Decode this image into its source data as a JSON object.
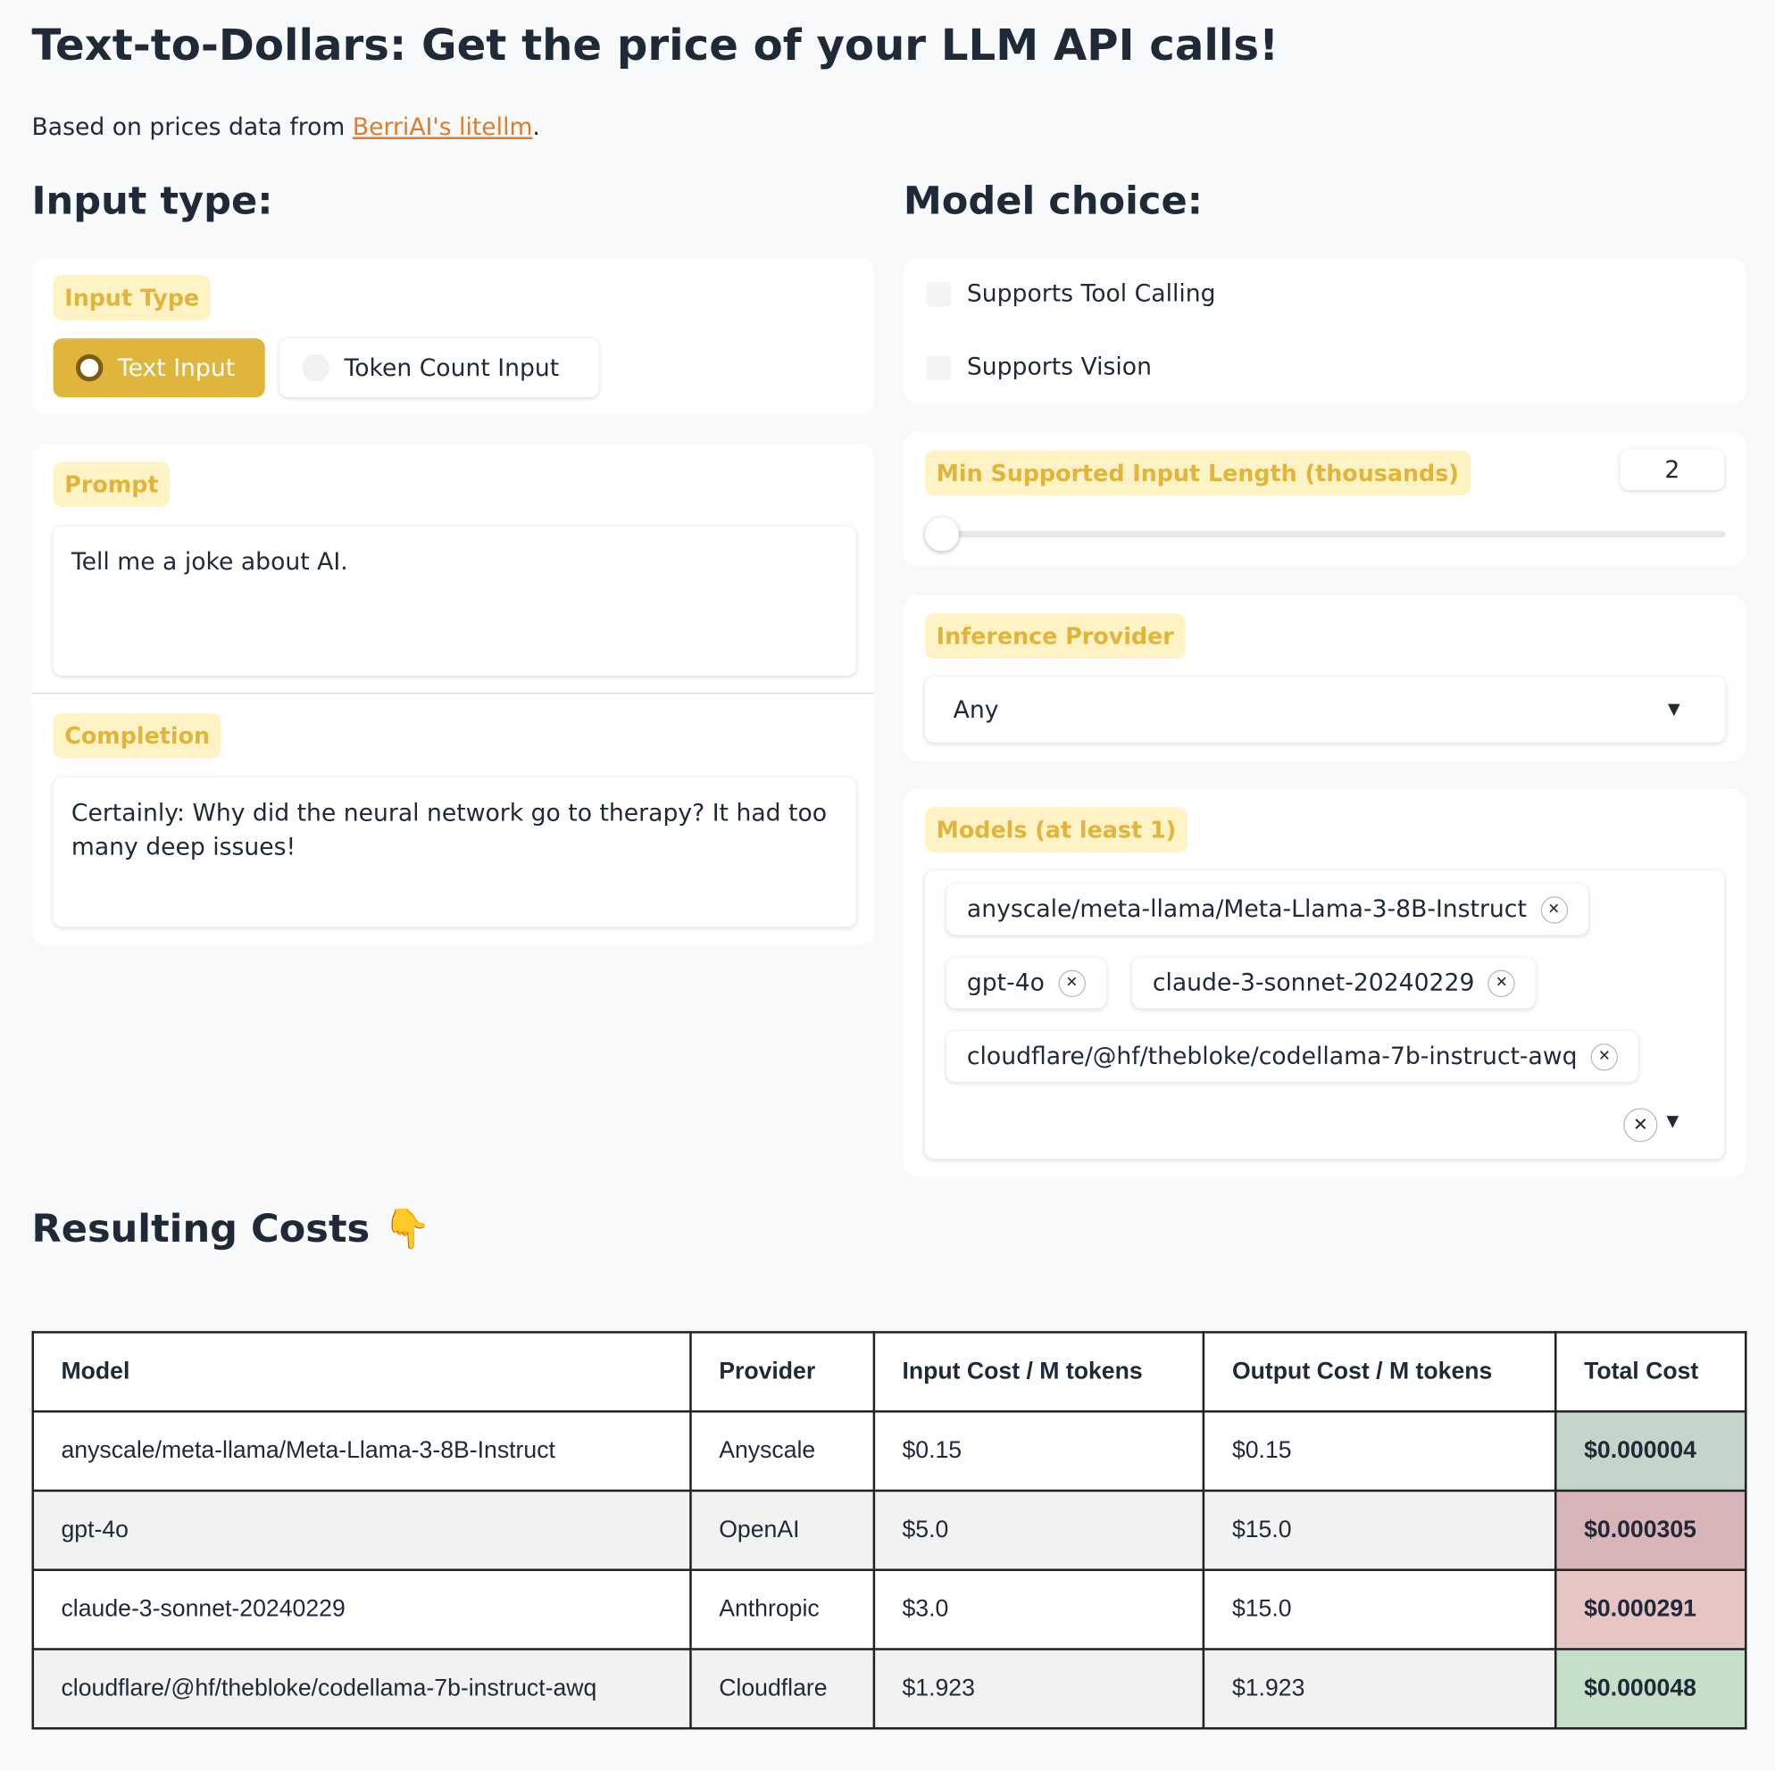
{
  "header": {
    "title": "Text-to-Dollars: Get the price of your LLM API calls!",
    "subtitle_prefix": "Based on prices data from ",
    "link": "BerriAI's litellm",
    "subtitle_suffix": "."
  },
  "input_section": {
    "heading": "Input type:",
    "input_type_label": "Input Type",
    "options": [
      "Text Input",
      "Token Count Input"
    ],
    "prompt_label": "Prompt",
    "prompt": "Tell me a joke about AI.",
    "completion_label": "Completion",
    "completion": "Certainly: Why did the neural network go to therapy? It had too many deep issues!"
  },
  "model_section": {
    "heading": "Model choice:",
    "checkboxes": [
      "Supports Tool Calling",
      "Supports Vision"
    ],
    "min_length_label": "Min Supported Input Length (thousands)",
    "min_length": 2,
    "provider_label": "Inference Provider",
    "provider": "Any",
    "models_label": "Models (at least 1)",
    "models": [
      "anyscale/meta-llama/Meta-Llama-3-8B-Instruct",
      "gpt-4o",
      "claude-3-sonnet-20240229",
      "cloudflare/@hf/thebloke/codellama-7b-instruct-awq"
    ]
  },
  "results": {
    "heading": "Resulting Costs 👇"
  },
  "table": {
    "columns": [
      "Model",
      "Provider",
      "Input Cost / M tokens",
      "Output Cost / M tokens",
      "Total Cost"
    ],
    "rows": [
      [
        "anyscale/meta-llama/Meta-Llama-3-8B-Instruct",
        "Anyscale",
        "$0.15",
        "$0.15",
        "$0.000004"
      ],
      [
        "gpt-4o",
        "OpenAI",
        "$5.0",
        "$15.0",
        "$0.000305"
      ],
      [
        "claude-3-sonnet-20240229",
        "Anthropic",
        "$3.0",
        "$15.0",
        "$0.000291"
      ],
      [
        "cloudflare/@hf/thebloke/codellama-7b-instruct-awq",
        "Cloudflare",
        "$1.923",
        "$1.923",
        "$0.000048"
      ]
    ]
  }
}
